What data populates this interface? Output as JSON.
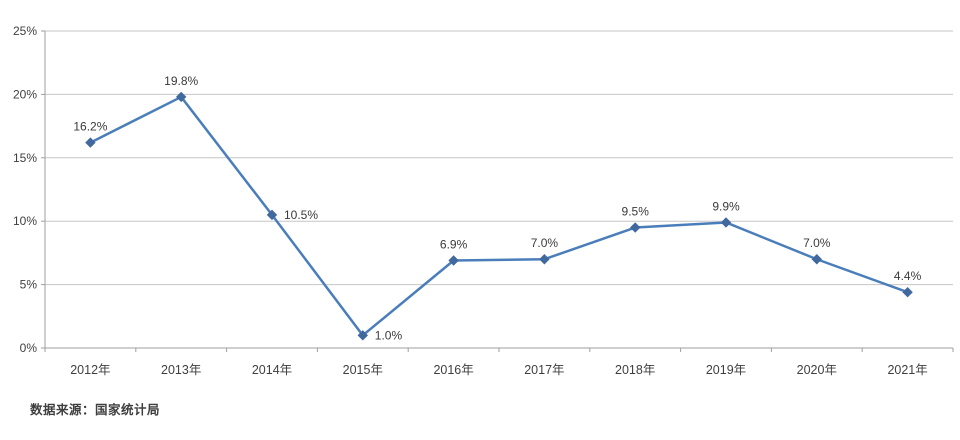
{
  "chart_data": {
    "type": "line",
    "title": "",
    "categories": [
      "2012年",
      "2013年",
      "2014年",
      "2015年",
      "2016年",
      "2017年",
      "2018年",
      "2019年",
      "2020年",
      "2021年"
    ],
    "values": [
      16.2,
      19.8,
      10.5,
      1.0,
      6.9,
      7.0,
      9.5,
      9.9,
      7.0,
      4.4
    ],
    "data_labels": [
      "16.2%",
      "19.8%",
      "10.5%",
      "1.0%",
      "6.9%",
      "7.0%",
      "9.5%",
      "9.9%",
      "7.0%",
      "4.4%"
    ],
    "label_positions": [
      "above",
      "above",
      "right",
      "right",
      "above",
      "above",
      "above",
      "above",
      "above",
      "above"
    ],
    "xlabel": "",
    "ylabel": "",
    "ylim": [
      0,
      25
    ],
    "ytick_step": 5,
    "y_tick_labels": [
      "0%",
      "5%",
      "10%",
      "15%",
      "20%",
      "25%"
    ],
    "grid": true,
    "legend_position": "none",
    "marker": "diamond",
    "colors": {
      "line": "#4a7ebb",
      "marker": "#41699e",
      "gridline": "#c6c6c6",
      "axis": "#9f9f9f",
      "tick_text": "#3f3f3f",
      "data_label_text": "#3a3a3a",
      "background": "#ffffff"
    }
  },
  "source_note": {
    "text": "数据来源：国家统计局"
  }
}
